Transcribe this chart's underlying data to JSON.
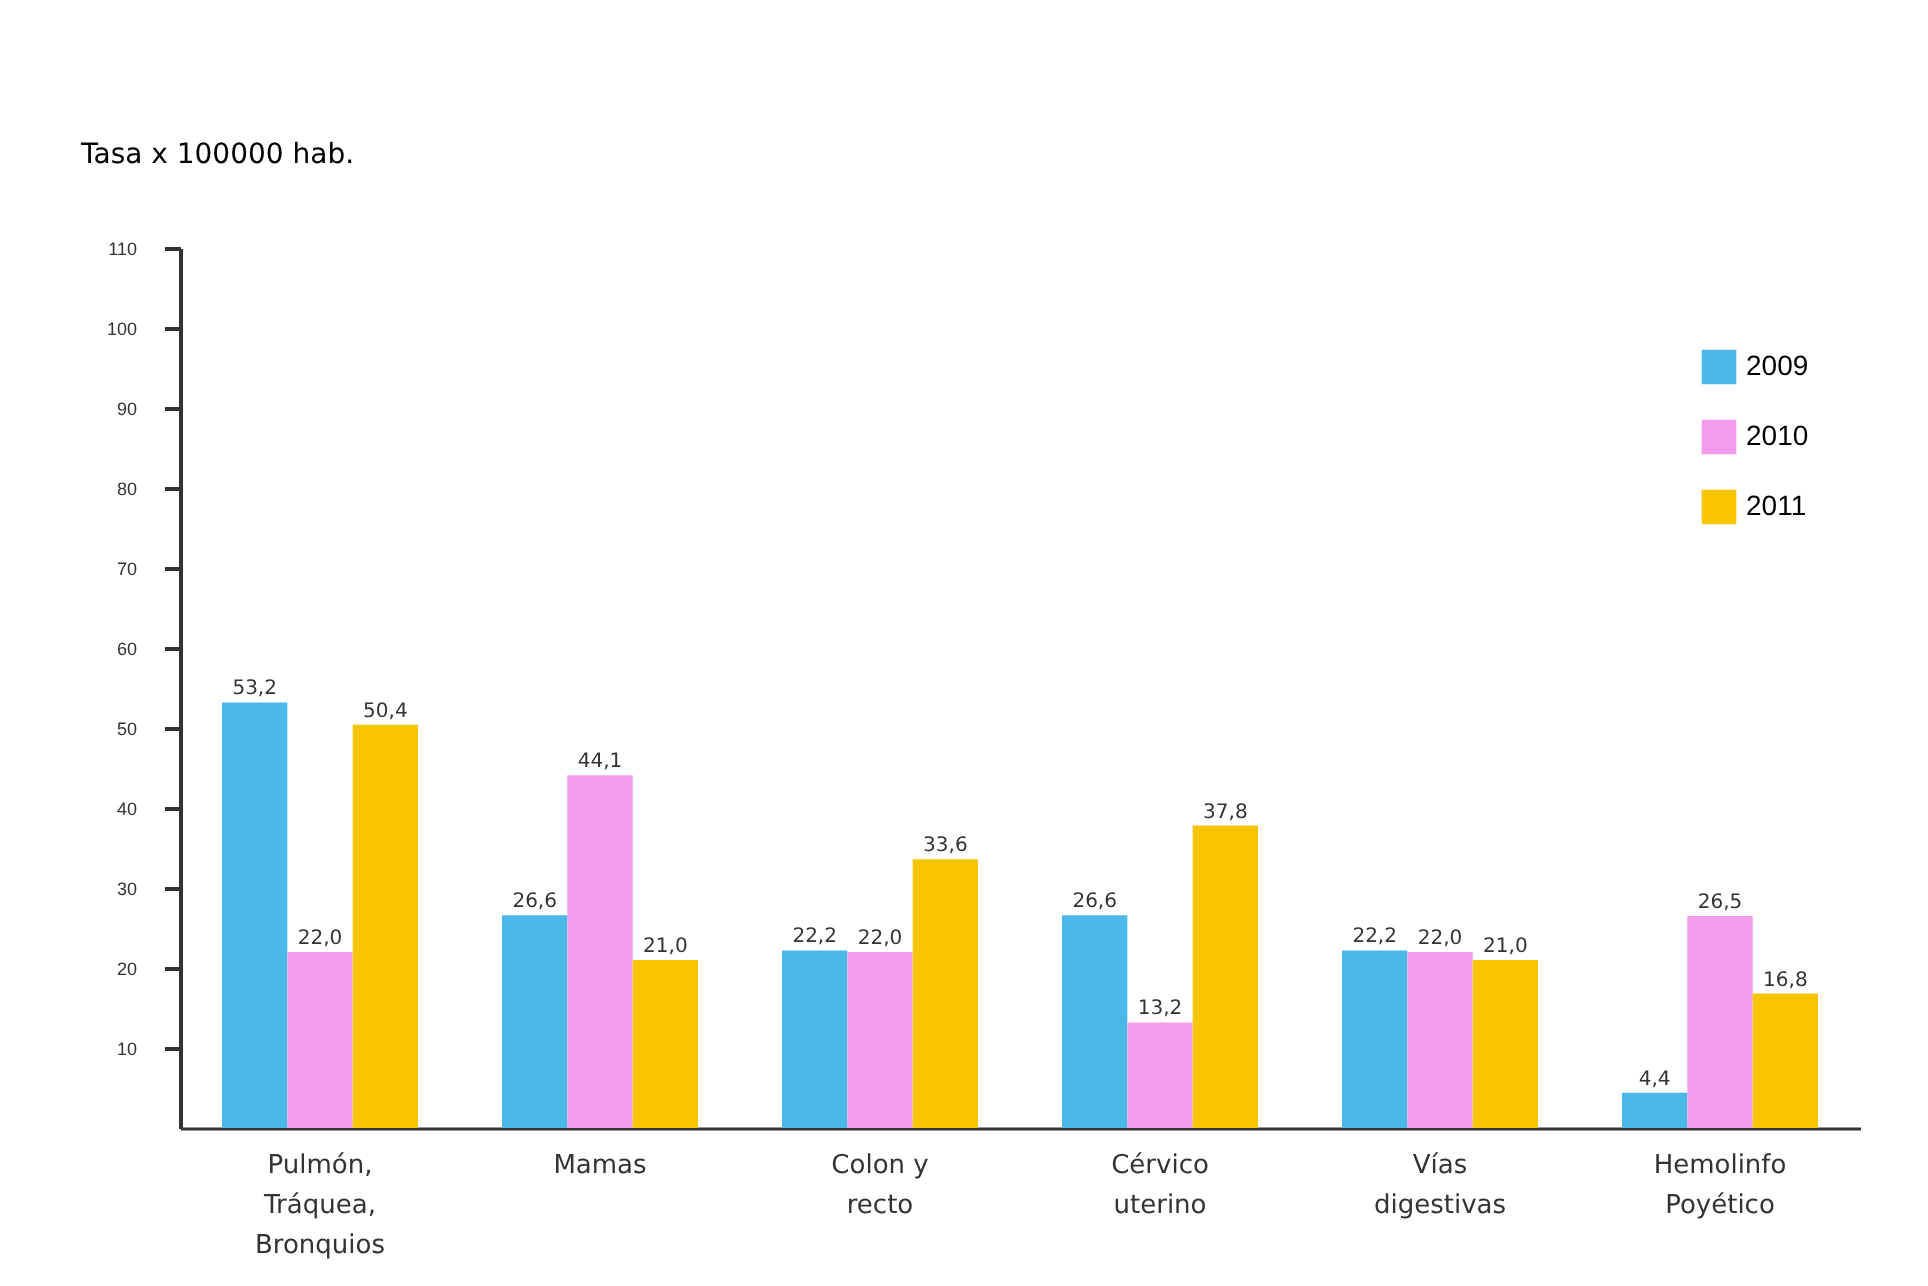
{
  "chart_data": {
    "type": "bar",
    "ylabel": "Tasa x 100000  hab.",
    "categories": [
      "Pulmón,\nTráquea,\nBronquios",
      "Mamas",
      "Colon y\nrecto",
      "Cérvico\nuterino",
      "Vías\ndigestivas",
      "Hemolinfo\nPoyético"
    ],
    "series": [
      {
        "name": "2009",
        "color": "#4ab8e8",
        "values": [
          53.2,
          26.6,
          22.2,
          26.6,
          22.2,
          4.4
        ],
        "value_labels": [
          "53,2",
          "26,6",
          "22,2",
          "26,6",
          "22,2",
          "4,4"
        ]
      },
      {
        "name": "2010",
        "color": "#f29cf0",
        "values": [
          22.0,
          44.1,
          22.0,
          13.2,
          22.0,
          26.5
        ],
        "value_labels": [
          "22,0",
          "44,1",
          "22,0",
          "13,2",
          "22,0",
          "26,5"
        ]
      },
      {
        "name": "2011",
        "color": "#f7c600",
        "values": [
          50.4,
          21.0,
          33.6,
          37.8,
          21.0,
          16.8
        ],
        "value_labels": [
          "50,4",
          "21,0",
          "33,6",
          "37,8",
          "21,0",
          "16,8"
        ]
      }
    ],
    "ylim": [
      0,
      110
    ],
    "yticks": [
      10,
      20,
      30,
      40,
      50,
      60,
      70,
      80,
      90,
      100,
      110
    ],
    "grid": false,
    "legend": "top right"
  }
}
